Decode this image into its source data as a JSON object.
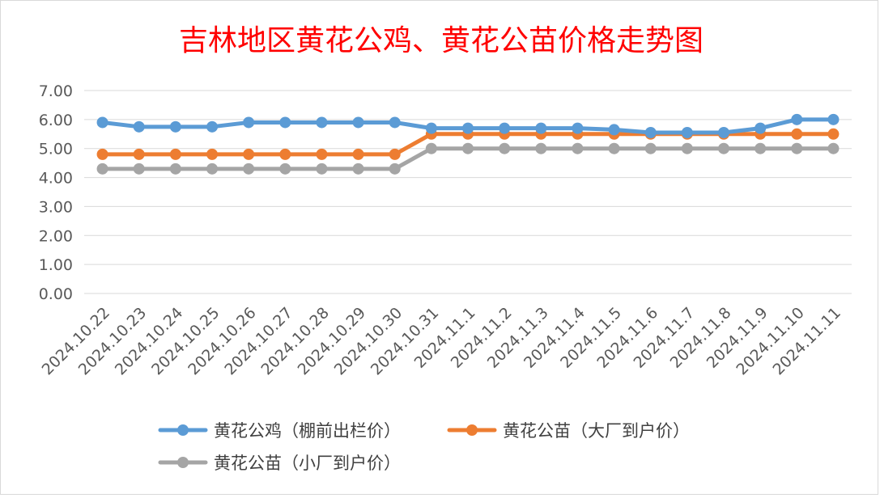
{
  "chart_data": {
    "type": "line",
    "title": "吉林地区黄花公鸡、黄花公苗价格走势图",
    "xlabel": "",
    "ylabel": "",
    "ylim": [
      0,
      7
    ],
    "y_ticks": [
      "0.00",
      "1.00",
      "2.00",
      "3.00",
      "4.00",
      "5.00",
      "6.00",
      "7.00"
    ],
    "grid": true,
    "legend_position": "bottom",
    "categories": [
      "2024.10.22",
      "2024.10.23",
      "2024.10.24",
      "2024.10.25",
      "2024.10.26",
      "2024.10.27",
      "2024.10.28",
      "2024.10.29",
      "2024.10.30",
      "2024.10.31",
      "2024.11.1",
      "2024.11.2",
      "2024.11.3",
      "2024.11.4",
      "2024.11.5",
      "2024.11.6",
      "2024.11.7",
      "2024.11.8",
      "2024.11.9",
      "2024.11.10",
      "2024.11.11"
    ],
    "series": [
      {
        "name": "黄花公鸡（棚前出栏价）",
        "color": "#5b9bd5",
        "values": [
          5.9,
          5.75,
          5.75,
          5.75,
          5.9,
          5.9,
          5.9,
          5.9,
          5.9,
          5.7,
          5.7,
          5.7,
          5.7,
          5.7,
          5.65,
          5.55,
          5.55,
          5.55,
          5.7,
          6.0,
          6.0
        ]
      },
      {
        "name": "黄花公苗（大厂到户价）",
        "color": "#ed7d31",
        "values": [
          4.8,
          4.8,
          4.8,
          4.8,
          4.8,
          4.8,
          4.8,
          4.8,
          4.8,
          5.5,
          5.5,
          5.5,
          5.5,
          5.5,
          5.5,
          5.5,
          5.5,
          5.5,
          5.5,
          5.5,
          5.5
        ]
      },
      {
        "name": "黄花公苗（小厂到户价）",
        "color": "#a5a5a5",
        "values": [
          4.3,
          4.3,
          4.3,
          4.3,
          4.3,
          4.3,
          4.3,
          4.3,
          4.3,
          5.0,
          5.0,
          5.0,
          5.0,
          5.0,
          5.0,
          5.0,
          5.0,
          5.0,
          5.0,
          5.0,
          5.0
        ]
      }
    ]
  }
}
